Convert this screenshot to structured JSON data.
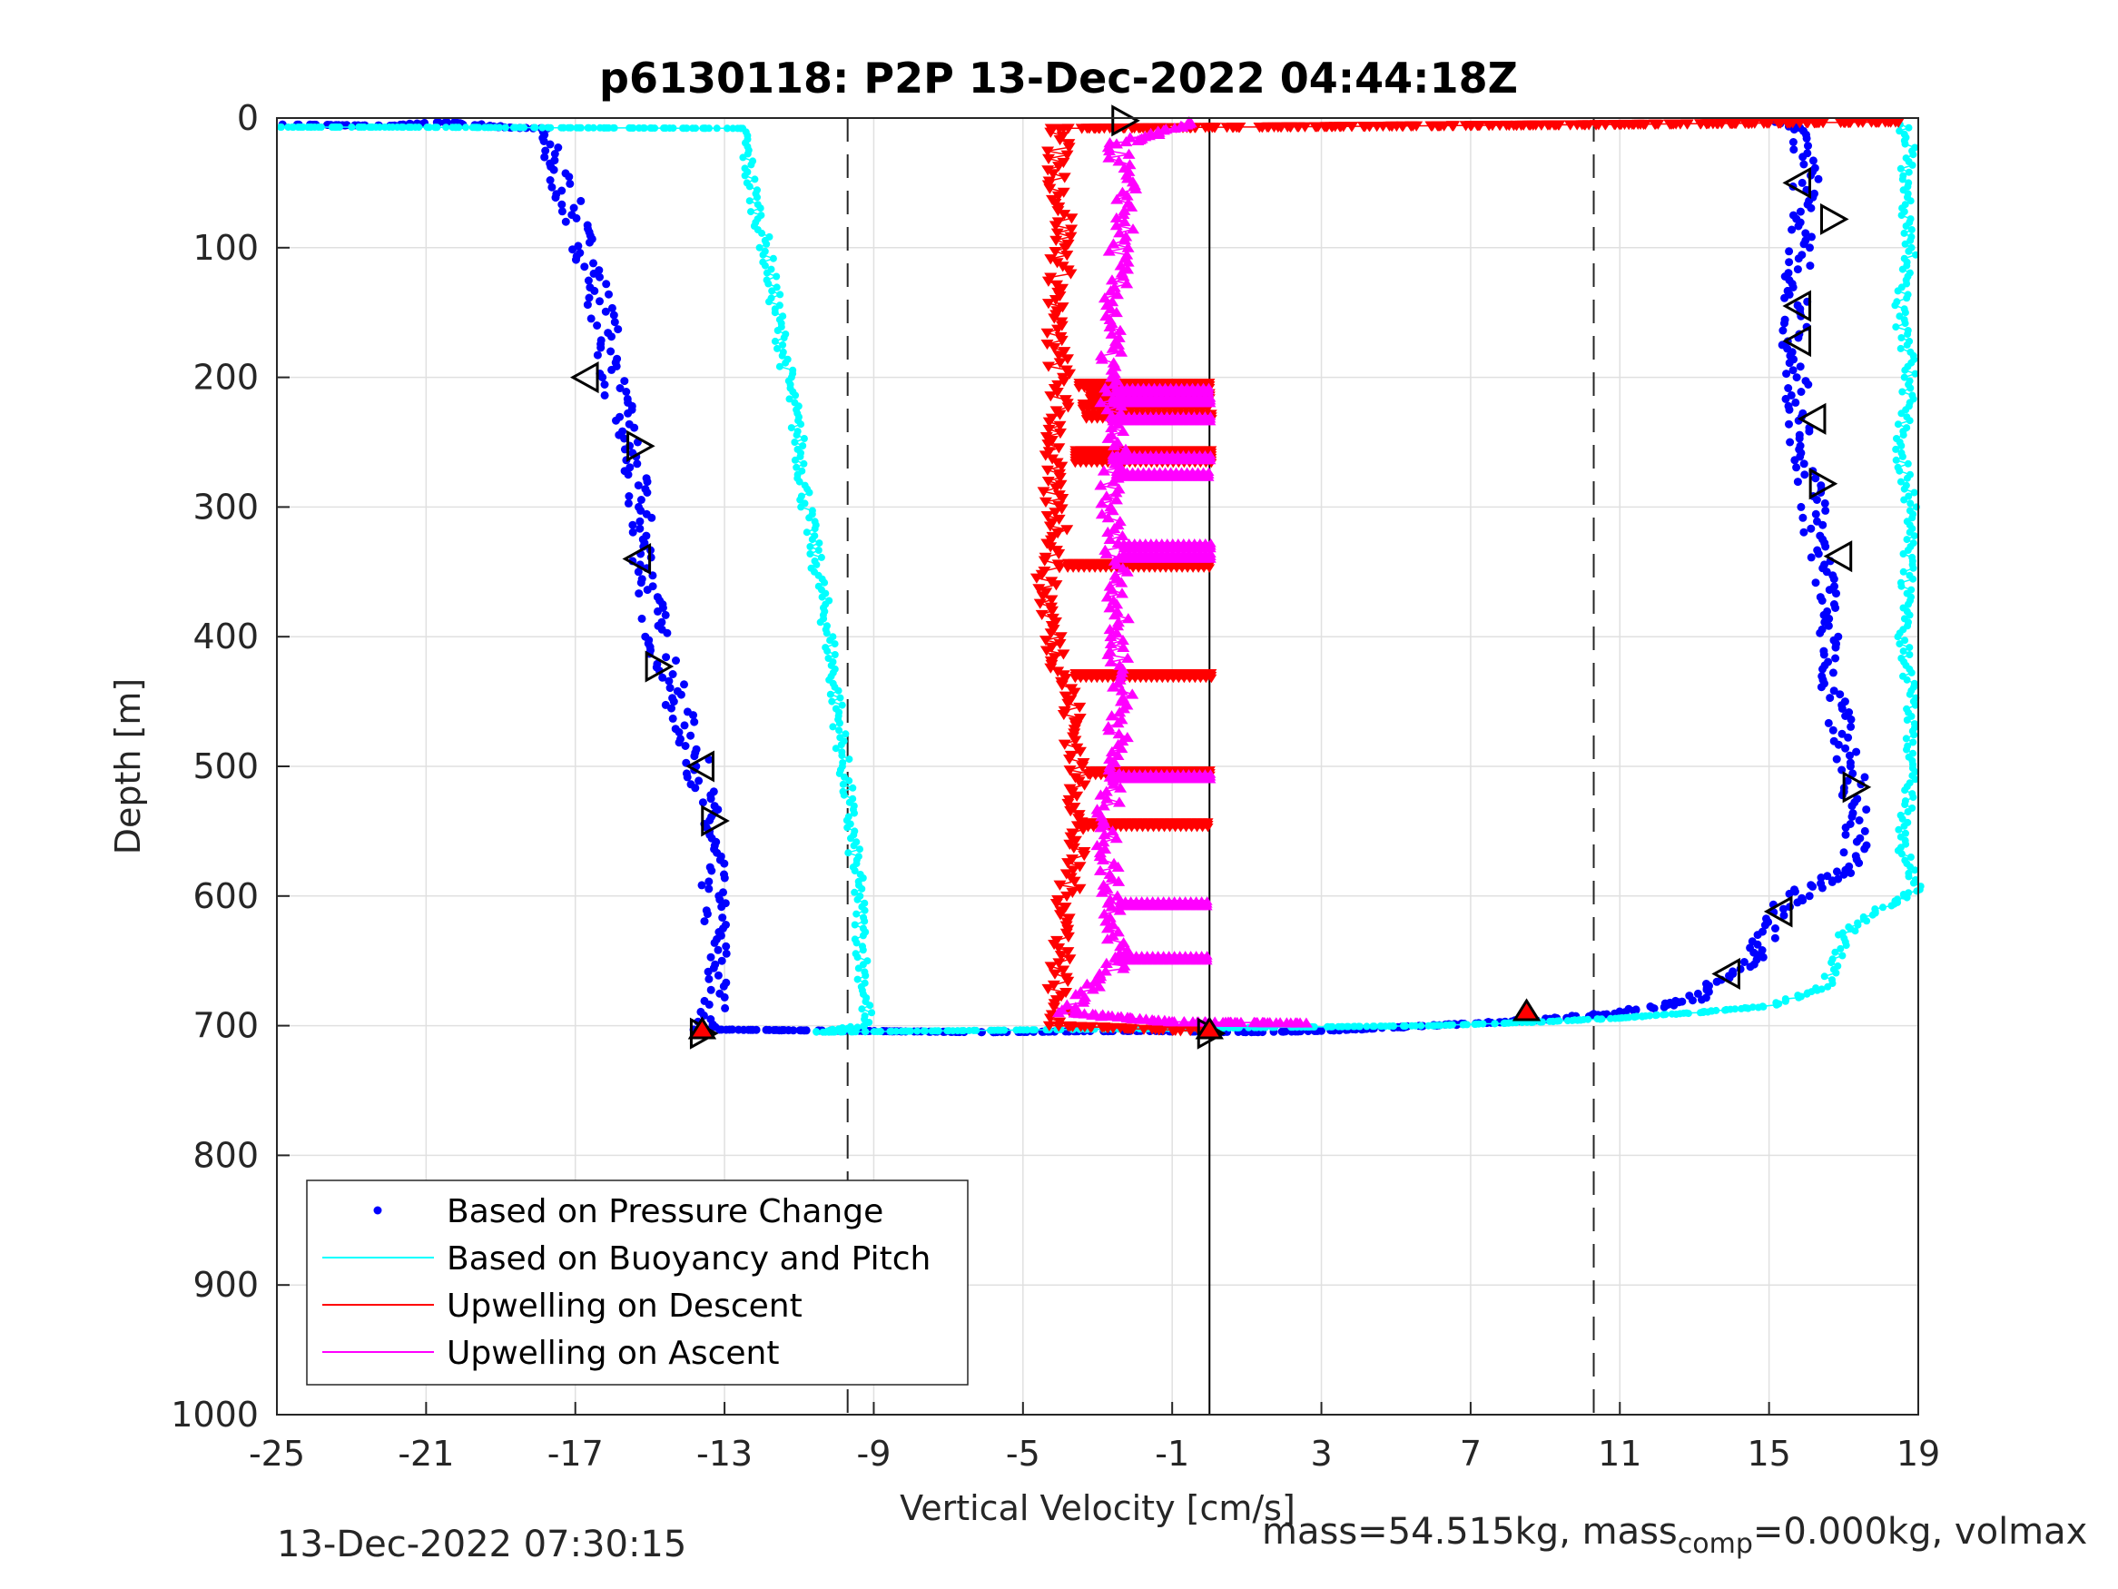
{
  "chart_data": {
    "type": "scatter",
    "title": "p6130118: P2P 13-Dec-2022 04:44:18Z",
    "xlabel": "Vertical Velocity [cm/s]",
    "ylabel": "Depth [m]",
    "xlim": [
      -25,
      19
    ],
    "ylim": [
      1000,
      0
    ],
    "y_reversed": true,
    "x_ticks": [
      -25,
      -21,
      -17,
      -13,
      -9,
      -5,
      -1,
      3,
      7,
      11,
      15,
      19
    ],
    "y_ticks": [
      0,
      100,
      200,
      300,
      400,
      500,
      600,
      700,
      800,
      900,
      1000
    ],
    "grid": true,
    "legend_position": "lower-left",
    "reference_lines": {
      "dashed_x": [
        -9.7,
        10.3
      ],
      "solid_x": [
        0
      ]
    },
    "series": [
      {
        "name": "Based on Pressure Change",
        "style": "dots",
        "color": "#0000ff",
        "descent": [
          [
            -24.5,
            5
          ],
          [
            -22,
            6
          ],
          [
            -20.5,
            3
          ],
          [
            -19,
            7
          ],
          [
            -18,
            8
          ],
          [
            -17.5,
            40
          ],
          [
            -17,
            80
          ],
          [
            -16.5,
            120
          ],
          [
            -16.2,
            160
          ],
          [
            -16,
            200
          ],
          [
            -15.6,
            250
          ],
          [
            -15.3,
            300
          ],
          [
            -15.1,
            350
          ],
          [
            -14.8,
            400
          ],
          [
            -14.3,
            450
          ],
          [
            -13.7,
            500
          ],
          [
            -13.4,
            550
          ],
          [
            -13.3,
            600
          ],
          [
            -13.2,
            650
          ],
          [
            -13.3,
            695
          ],
          [
            -13.6,
            703
          ]
        ],
        "ascent": [
          [
            -13.2,
            703
          ],
          [
            -6,
            705
          ],
          [
            -2,
            704
          ],
          [
            1,
            705
          ],
          [
            3,
            704
          ],
          [
            6,
            700
          ],
          [
            9,
            695
          ],
          [
            11,
            690
          ],
          [
            13,
            680
          ],
          [
            14,
            660
          ],
          [
            14.8,
            640
          ],
          [
            15.3,
            610
          ],
          [
            16,
            595
          ],
          [
            17.2,
            580
          ],
          [
            17.3,
            550
          ],
          [
            17.2,
            500
          ],
          [
            16.8,
            450
          ],
          [
            16.6,
            400
          ],
          [
            16.4,
            350
          ],
          [
            16.2,
            300
          ],
          [
            15.9,
            250
          ],
          [
            15.7,
            200
          ],
          [
            15.7,
            150
          ],
          [
            15.8,
            100
          ],
          [
            16,
            50
          ],
          [
            16,
            10
          ],
          [
            15.5,
            3
          ]
        ]
      },
      {
        "name": "Based on Buoyancy and Pitch",
        "style": "line-dots",
        "color": "#00ffff",
        "descent": [
          [
            -25,
            7
          ],
          [
            -22,
            7
          ],
          [
            -12.5,
            8
          ],
          [
            -12.3,
            50
          ],
          [
            -11.9,
            100
          ],
          [
            -11.6,
            150
          ],
          [
            -11.3,
            200
          ],
          [
            -11,
            250
          ],
          [
            -10.8,
            300
          ],
          [
            -10.5,
            350
          ],
          [
            -10.2,
            400
          ],
          [
            -10,
            450
          ],
          [
            -9.8,
            500
          ],
          [
            -9.6,
            550
          ],
          [
            -9.4,
            600
          ],
          [
            -9.3,
            650
          ],
          [
            -9.2,
            690
          ],
          [
            -9.3,
            700
          ],
          [
            -10.5,
            705
          ]
        ],
        "ascent": [
          [
            -10.5,
            705
          ],
          [
            6,
            700
          ],
          [
            9,
            697
          ],
          [
            11,
            694
          ],
          [
            13,
            690
          ],
          [
            15,
            685
          ],
          [
            16.5,
            670
          ],
          [
            17,
            630
          ],
          [
            18,
            610
          ],
          [
            19,
            595
          ],
          [
            18.5,
            560
          ],
          [
            18.8,
            510
          ],
          [
            18.8,
            450
          ],
          [
            18.6,
            400
          ],
          [
            18.7,
            350
          ],
          [
            18.8,
            300
          ],
          [
            18.5,
            250
          ],
          [
            18.8,
            200
          ],
          [
            18.5,
            150
          ],
          [
            18.8,
            100
          ],
          [
            18.6,
            50
          ],
          [
            18.8,
            20
          ],
          [
            18.6,
            5
          ]
        ]
      },
      {
        "name": "Upwelling on Descent",
        "style": "line-triangle-down",
        "color": "#ff0000",
        "values": [
          [
            18.5,
            3
          ],
          [
            10.5,
            5
          ],
          [
            -4,
            8
          ],
          [
            -4.1,
            40
          ],
          [
            -3.9,
            80
          ],
          [
            -4,
            120
          ],
          [
            -4.2,
            160
          ],
          [
            -4,
            200
          ],
          [
            -4.1,
            240
          ],
          [
            -4.3,
            280
          ],
          [
            -4,
            320
          ],
          [
            -4.4,
            360
          ],
          [
            -4.2,
            400
          ],
          [
            -3.8,
            440
          ],
          [
            -3.6,
            480
          ],
          [
            -3.5,
            520
          ],
          [
            -3.6,
            560
          ],
          [
            -3.8,
            600
          ],
          [
            -3.9,
            640
          ],
          [
            -4.1,
            680
          ],
          [
            -4,
            700
          ],
          [
            -0.5,
            704
          ]
        ],
        "spikes": [
          [
            206,
            -3.5
          ],
          [
            214,
            -3.2
          ],
          [
            222,
            -3.4
          ],
          [
            230,
            -3.3
          ],
          [
            258,
            -3.6
          ],
          [
            264,
            -3.6
          ],
          [
            345,
            -3.8
          ],
          [
            430,
            -3.6
          ],
          [
            505,
            -3.2
          ],
          [
            545,
            -3.4
          ]
        ]
      },
      {
        "name": "Upwelling on Ascent",
        "style": "line-triangle-up",
        "color": "#ff00ff",
        "values": [
          [
            -0.5,
            3
          ],
          [
            -2.5,
            20
          ],
          [
            -2.2,
            60
          ],
          [
            -2.4,
            100
          ],
          [
            -2.6,
            150
          ],
          [
            -2.7,
            200
          ],
          [
            -2.5,
            250
          ],
          [
            -2.7,
            300
          ],
          [
            -2.4,
            350
          ],
          [
            -2.5,
            400
          ],
          [
            -2.3,
            450
          ],
          [
            -2.6,
            500
          ],
          [
            -2.8,
            550
          ],
          [
            -2.6,
            600
          ],
          [
            -2.4,
            650
          ],
          [
            -3.8,
            690
          ],
          [
            -1,
            697
          ],
          [
            2.5,
            698
          ]
        ],
        "spikes": [
          [
            210,
            -2.5
          ],
          [
            218,
            -2.6
          ],
          [
            232,
            -2.6
          ],
          [
            262,
            -2.6
          ],
          [
            275,
            -2.5
          ],
          [
            330,
            -2.3
          ],
          [
            338,
            -2.3
          ],
          [
            508,
            -2.6
          ],
          [
            606,
            -2.4
          ],
          [
            648,
            -2.4
          ]
        ]
      }
    ],
    "markers": {
      "open_triangles": [
        [
          -2.3,
          2,
          "right"
        ],
        [
          15.8,
          50,
          "left"
        ],
        [
          16.7,
          78,
          "right"
        ],
        [
          15.8,
          145,
          "left"
        ],
        [
          15.8,
          172,
          "left"
        ],
        [
          16.2,
          232,
          "left"
        ],
        [
          16.4,
          282,
          "right"
        ],
        [
          16.9,
          338,
          "left"
        ],
        [
          17.3,
          516,
          "right"
        ],
        [
          15.3,
          612,
          "left"
        ],
        [
          13.9,
          660,
          "left"
        ],
        [
          -16.7,
          200,
          "left"
        ],
        [
          -15.3,
          253,
          "right"
        ],
        [
          -15.3,
          340,
          "left"
        ],
        [
          -14.8,
          423,
          "right"
        ],
        [
          -13.6,
          500,
          "left"
        ],
        [
          -13.3,
          542,
          "right"
        ],
        [
          -13.6,
          706,
          "right"
        ],
        [
          0,
          706,
          "right"
        ]
      ],
      "filled_red_up": [
        [
          -13.6,
          703
        ],
        [
          0,
          703
        ],
        [
          8.5,
          689
        ]
      ]
    }
  },
  "footer": {
    "timestamp": "13-Dec-2022 07:30:15",
    "mass_prefix": "mass=54.515kg, mass",
    "mass_sub": "comp",
    "mass_suffix": "=0.000kg, volmax"
  }
}
